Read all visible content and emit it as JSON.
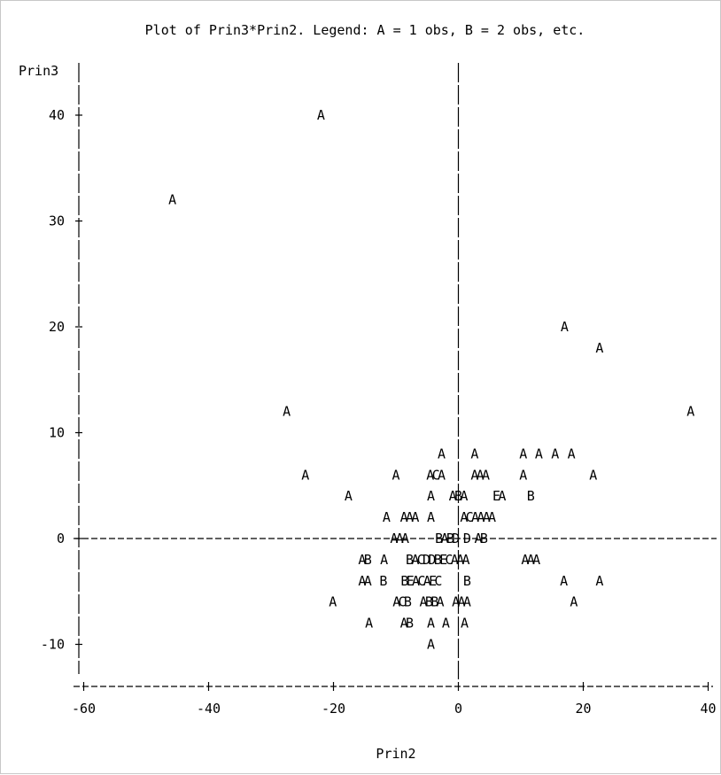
{
  "chart_data": {
    "type": "scatter",
    "title": "Plot of Prin3*Prin2.  Legend: A = 1 obs, B = 2 obs, etc.",
    "xlabel": "Prin2",
    "ylabel": "Prin3",
    "xlim": [
      -61,
      40
    ],
    "ylim": [
      -14,
      43
    ],
    "xticks": [
      -60,
      -40,
      -20,
      0,
      20,
      40
    ],
    "yticks": [
      40,
      30,
      20,
      10,
      0,
      -10
    ],
    "reference_lines": {
      "x": 0,
      "y": 0
    },
    "grid": false,
    "legend": "in title",
    "points": [
      {
        "x": -22,
        "y": 40,
        "label": "A"
      },
      {
        "x": -45.8,
        "y": 32,
        "label": "A"
      },
      {
        "x": 17,
        "y": 20,
        "label": "A"
      },
      {
        "x": 22.6,
        "y": 18,
        "label": "A"
      },
      {
        "x": -27.5,
        "y": 12,
        "label": "A"
      },
      {
        "x": 37.2,
        "y": 12,
        "label": "A"
      },
      {
        "x": -2.7,
        "y": 8,
        "label": "A"
      },
      {
        "x": 2.6,
        "y": 8,
        "label": "A"
      },
      {
        "x": 10.4,
        "y": 8,
        "label": "A"
      },
      {
        "x": 12.9,
        "y": 8,
        "label": "A"
      },
      {
        "x": 15.5,
        "y": 8,
        "label": "A"
      },
      {
        "x": 18.1,
        "y": 8,
        "label": "A"
      },
      {
        "x": -24.5,
        "y": 6,
        "label": "A"
      },
      {
        "x": -10,
        "y": 6,
        "label": "A"
      },
      {
        "x": -4.5,
        "y": 6,
        "label": "A"
      },
      {
        "x": -3.6,
        "y": 6,
        "label": "C"
      },
      {
        "x": -2.7,
        "y": 6,
        "label": "A"
      },
      {
        "x": 2.6,
        "y": 6,
        "label": "A"
      },
      {
        "x": 3.5,
        "y": 6,
        "label": "A"
      },
      {
        "x": 4.4,
        "y": 6,
        "label": "A"
      },
      {
        "x": 10.4,
        "y": 6,
        "label": "A"
      },
      {
        "x": 21.6,
        "y": 6,
        "label": "A"
      },
      {
        "x": -17.6,
        "y": 4,
        "label": "A"
      },
      {
        "x": -4.4,
        "y": 4,
        "label": "A"
      },
      {
        "x": -0.9,
        "y": 4,
        "label": "A"
      },
      {
        "x": 0,
        "y": 4,
        "label": "B"
      },
      {
        "x": 0.9,
        "y": 4,
        "label": "A"
      },
      {
        "x": 6.1,
        "y": 4,
        "label": "E"
      },
      {
        "x": 7,
        "y": 4,
        "label": "A"
      },
      {
        "x": 11.6,
        "y": 4,
        "label": "B"
      },
      {
        "x": -11.5,
        "y": 2,
        "label": "A"
      },
      {
        "x": -8.7,
        "y": 2,
        "label": "A"
      },
      {
        "x": -7.8,
        "y": 2,
        "label": "A"
      },
      {
        "x": -6.9,
        "y": 2,
        "label": "A"
      },
      {
        "x": -4.4,
        "y": 2,
        "label": "A"
      },
      {
        "x": 0.9,
        "y": 2,
        "label": "A"
      },
      {
        "x": 1.8,
        "y": 2,
        "label": "C"
      },
      {
        "x": 2.7,
        "y": 2,
        "label": "A"
      },
      {
        "x": 3.6,
        "y": 2,
        "label": "A"
      },
      {
        "x": 4.5,
        "y": 2,
        "label": "A"
      },
      {
        "x": 5.4,
        "y": 2,
        "label": "A"
      },
      {
        "x": -10.3,
        "y": 0,
        "label": "A"
      },
      {
        "x": -9.4,
        "y": 0,
        "label": "A"
      },
      {
        "x": -8.5,
        "y": 0,
        "label": "A"
      },
      {
        "x": -3.1,
        "y": 0,
        "label": "B"
      },
      {
        "x": -2.2,
        "y": 0,
        "label": "A"
      },
      {
        "x": -1.3,
        "y": 0,
        "label": "B"
      },
      {
        "x": -0.4,
        "y": 0,
        "label": "D"
      },
      {
        "x": 1.4,
        "y": 0,
        "label": "D"
      },
      {
        "x": 3.2,
        "y": 0,
        "label": "A"
      },
      {
        "x": 4.1,
        "y": 0,
        "label": "B"
      },
      {
        "x": -15.4,
        "y": -4,
        "label": "A"
      },
      {
        "x": -14.5,
        "y": -4,
        "label": "A"
      },
      {
        "x": -12,
        "y": -4,
        "label": "B"
      },
      {
        "x": -8.6,
        "y": -4,
        "label": "B"
      },
      {
        "x": -7.7,
        "y": -4,
        "label": "E"
      },
      {
        "x": -6.8,
        "y": -4,
        "label": "A"
      },
      {
        "x": -5.9,
        "y": -4,
        "label": "C"
      },
      {
        "x": -5,
        "y": -4,
        "label": "A"
      },
      {
        "x": -4.1,
        "y": -4,
        "label": "E"
      },
      {
        "x": -3.2,
        "y": -4,
        "label": "C"
      },
      {
        "x": 1.4,
        "y": -4,
        "label": "B"
      },
      {
        "x": 16.9,
        "y": -4,
        "label": "A"
      },
      {
        "x": 22.6,
        "y": -4,
        "label": "A"
      },
      {
        "x": -15.4,
        "y": -2,
        "label": "A"
      },
      {
        "x": -14.5,
        "y": -2,
        "label": "B"
      },
      {
        "x": -11.9,
        "y": -2,
        "label": "A"
      },
      {
        "x": -7.8,
        "y": -2,
        "label": "B"
      },
      {
        "x": -6.9,
        "y": -2,
        "label": "A"
      },
      {
        "x": -6,
        "y": -2,
        "label": "C"
      },
      {
        "x": -5.1,
        "y": -2,
        "label": "D"
      },
      {
        "x": -4.2,
        "y": -2,
        "label": "D"
      },
      {
        "x": -3.3,
        "y": -2,
        "label": "B"
      },
      {
        "x": -2.4,
        "y": -2,
        "label": "E"
      },
      {
        "x": -1.5,
        "y": -2,
        "label": "C"
      },
      {
        "x": -0.6,
        "y": -2,
        "label": "A"
      },
      {
        "x": 0.3,
        "y": -2,
        "label": "A"
      },
      {
        "x": 1.2,
        "y": -2,
        "label": "A"
      },
      {
        "x": 10.7,
        "y": -2,
        "label": "A"
      },
      {
        "x": 11.6,
        "y": -2,
        "label": "A"
      },
      {
        "x": 12.5,
        "y": -2,
        "label": "A"
      },
      {
        "x": -20.1,
        "y": -6,
        "label": "A"
      },
      {
        "x": -9.9,
        "y": -6,
        "label": "A"
      },
      {
        "x": -9,
        "y": -6,
        "label": "C"
      },
      {
        "x": -8.1,
        "y": -6,
        "label": "B"
      },
      {
        "x": -5.6,
        "y": -6,
        "label": "A"
      },
      {
        "x": -4.7,
        "y": -6,
        "label": "B"
      },
      {
        "x": -3.8,
        "y": -6,
        "label": "B"
      },
      {
        "x": -2.9,
        "y": -6,
        "label": "A"
      },
      {
        "x": -0.4,
        "y": -6,
        "label": "A"
      },
      {
        "x": 0.5,
        "y": -6,
        "label": "A"
      },
      {
        "x": 1.4,
        "y": -6,
        "label": "A"
      },
      {
        "x": 18.5,
        "y": -6,
        "label": "A"
      },
      {
        "x": -14.3,
        "y": -8,
        "label": "A"
      },
      {
        "x": -8.7,
        "y": -8,
        "label": "A"
      },
      {
        "x": -7.8,
        "y": -8,
        "label": "B"
      },
      {
        "x": -4.4,
        "y": -8,
        "label": "A"
      },
      {
        "x": -2,
        "y": -8,
        "label": "A"
      },
      {
        "x": 1,
        "y": -8,
        "label": "A"
      },
      {
        "x": -4.4,
        "y": -10,
        "label": "A"
      }
    ]
  }
}
